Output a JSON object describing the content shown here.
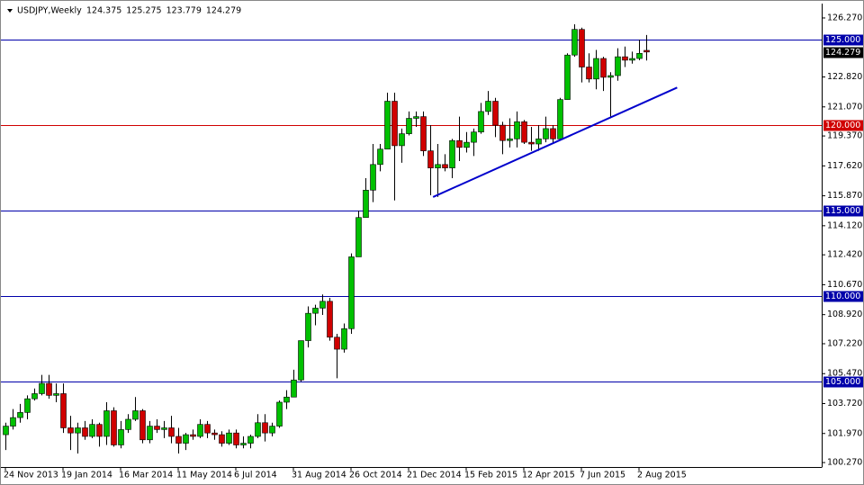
{
  "chart_data": {
    "type": "candlestick",
    "title": "USDJPY,Weekly",
    "header_values": [
      124.375,
      125.275,
      123.779,
      124.279
    ],
    "categories": [
      "24 Nov 2013",
      null,
      null,
      null,
      null,
      null,
      null,
      null,
      "19 Jan 2014",
      null,
      null,
      null,
      null,
      null,
      null,
      null,
      "16 Mar 2014",
      null,
      null,
      null,
      null,
      null,
      null,
      null,
      "11 May 2014",
      null,
      null,
      null,
      null,
      null,
      null,
      null,
      "6 Jul 2014",
      null,
      null,
      null,
      null,
      null,
      null,
      null,
      "31 Aug 2014",
      null,
      null,
      null,
      null,
      null,
      null,
      null,
      "26 Oct 2014",
      null,
      null,
      null,
      null,
      null,
      null,
      null,
      "21 Dec 2014",
      null,
      null,
      null,
      null,
      null,
      null,
      null,
      "15 Feb 2015",
      null,
      null,
      null,
      null,
      null,
      null,
      null,
      "12 Apr 2015",
      null,
      null,
      null,
      null,
      null,
      null,
      null,
      "7 Jun 2015",
      null,
      null,
      null,
      null,
      null,
      null,
      null,
      "2 Aug 2015",
      null
    ],
    "open": [
      101.9,
      102.4,
      102.9,
      103.2,
      104.0,
      104.3,
      104.9,
      104.2,
      104.3,
      102.3,
      102.0,
      102.3,
      101.8,
      102.5,
      101.8,
      103.3,
      101.3,
      102.2,
      102.8,
      103.3,
      101.6,
      102.4,
      102.2,
      102.3,
      101.8,
      101.4,
      101.9,
      101.8,
      102.5,
      102.0,
      101.9,
      101.4,
      102.0,
      101.3,
      101.4,
      101.8,
      102.6,
      102.0,
      102.4,
      103.8,
      104.1,
      105.1,
      107.4,
      109.0,
      109.3,
      109.7,
      107.6,
      106.9,
      108.1,
      112.3,
      114.6,
      116.2,
      117.7,
      118.6,
      121.4,
      118.8,
      119.5,
      120.4,
      120.5,
      118.5,
      117.5,
      117.7,
      117.5,
      119.1,
      118.7,
      119.0,
      119.6,
      120.8,
      121.4,
      120.0,
      119.1,
      119.2,
      120.2,
      119.0,
      118.9,
      119.2,
      119.8,
      119.2,
      121.5,
      124.1,
      125.6,
      123.4,
      122.7,
      123.9,
      122.8,
      122.9,
      124.0,
      123.8,
      123.9,
      124.375
    ],
    "high": [
      102.6,
      103.4,
      103.7,
      104.2,
      104.6,
      105.4,
      105.4,
      104.9,
      104.9,
      103.0,
      102.6,
      102.7,
      102.8,
      102.6,
      103.8,
      103.5,
      102.7,
      103.1,
      104.1,
      103.4,
      102.7,
      102.8,
      102.7,
      103.0,
      102.3,
      102.0,
      102.2,
      102.8,
      102.7,
      102.2,
      102.1,
      102.2,
      102.2,
      101.8,
      101.9,
      103.1,
      103.1,
      102.6,
      103.9,
      104.5,
      105.7,
      107.4,
      109.4,
      109.5,
      110.1,
      109.9,
      107.8,
      108.4,
      112.5,
      115.0,
      116.9,
      118.9,
      118.9,
      121.9,
      121.9,
      119.8,
      120.8,
      120.8,
      120.8,
      120.0,
      118.9,
      118.3,
      119.2,
      120.5,
      119.6,
      119.8,
      121.3,
      122.0,
      121.6,
      120.2,
      120.4,
      120.8,
      120.3,
      119.9,
      120.0,
      120.5,
      120.0,
      121.6,
      124.2,
      125.9,
      125.7,
      124.2,
      124.4,
      124.0,
      123.1,
      124.5,
      124.6,
      124.3,
      125.0,
      125.275
    ],
    "low": [
      101.0,
      102.2,
      102.6,
      102.8,
      103.9,
      104.2,
      104.0,
      103.8,
      102.0,
      101.0,
      100.8,
      101.6,
      101.7,
      101.2,
      101.3,
      101.2,
      101.1,
      102.0,
      102.7,
      101.4,
      101.4,
      102.0,
      101.7,
      101.4,
      100.8,
      101.0,
      101.6,
      101.7,
      101.7,
      101.6,
      101.2,
      101.3,
      101.1,
      101.1,
      101.1,
      101.7,
      101.5,
      101.8,
      102.3,
      103.4,
      104.1,
      105.0,
      107.0,
      108.3,
      108.9,
      107.4,
      105.2,
      106.7,
      107.8,
      112.3,
      114.6,
      115.5,
      117.3,
      118.6,
      115.6,
      117.8,
      119.4,
      119.9,
      118.2,
      115.9,
      115.8,
      117.3,
      116.9,
      117.9,
      118.4,
      118.2,
      119.5,
      120.6,
      119.3,
      118.3,
      118.7,
      118.7,
      118.9,
      118.5,
      118.5,
      119.0,
      118.9,
      119.2,
      121.5,
      124.0,
      122.5,
      122.5,
      122.1,
      122.0,
      120.4,
      122.6,
      123.4,
      123.6,
      123.8,
      123.779
    ],
    "close": [
      102.4,
      102.9,
      103.2,
      104.0,
      104.3,
      104.9,
      104.2,
      104.3,
      102.3,
      102.0,
      102.3,
      101.8,
      102.5,
      101.8,
      103.3,
      101.3,
      102.2,
      102.8,
      103.3,
      101.6,
      102.4,
      102.2,
      102.3,
      101.8,
      101.4,
      101.9,
      101.8,
      102.5,
      102.0,
      101.9,
      101.4,
      102.0,
      101.3,
      101.4,
      101.8,
      102.6,
      102.0,
      102.4,
      103.8,
      104.1,
      105.1,
      107.4,
      109.0,
      109.3,
      109.7,
      107.6,
      106.9,
      108.1,
      112.3,
      114.6,
      116.2,
      117.7,
      118.6,
      121.4,
      118.8,
      119.5,
      120.4,
      120.5,
      118.5,
      117.5,
      117.7,
      117.5,
      119.1,
      118.7,
      119.0,
      119.6,
      120.8,
      121.4,
      120.0,
      119.1,
      119.2,
      120.2,
      119.0,
      118.9,
      119.2,
      119.8,
      119.2,
      121.5,
      124.1,
      125.6,
      123.4,
      122.7,
      123.9,
      122.8,
      122.9,
      124.0,
      123.8,
      123.9,
      124.2,
      124.279
    ],
    "up_color": "#00c000",
    "down_color": "#d00000",
    "ylim": [
      100.01,
      127.11
    ],
    "yticks": [
      {
        "value": 126.27,
        "label": "126.270"
      },
      {
        "value": 122.82,
        "label": "122.820"
      },
      {
        "value": 121.07,
        "label": "121.070"
      },
      {
        "value": 119.37,
        "label": "119.370"
      },
      {
        "value": 117.62,
        "label": "117.620"
      },
      {
        "value": 115.87,
        "label": "115.870"
      },
      {
        "value": 114.12,
        "label": "114.120"
      },
      {
        "value": 112.42,
        "label": "112.420"
      },
      {
        "value": 110.67,
        "label": "110.670"
      },
      {
        "value": 108.92,
        "label": "108.920"
      },
      {
        "value": 107.22,
        "label": "107.220"
      },
      {
        "value": 105.47,
        "label": "105.470"
      },
      {
        "value": 103.72,
        "label": "103.720"
      },
      {
        "value": 101.97,
        "label": "101.970"
      },
      {
        "value": 100.27,
        "label": "100.270"
      }
    ],
    "levels": [
      {
        "value": 125,
        "label": "125.000",
        "color": "#0000aa"
      },
      {
        "value": 120,
        "label": "120.000",
        "color": "#d00000"
      },
      {
        "value": 115,
        "label": "115.000",
        "color": "#0000aa"
      },
      {
        "value": 110,
        "label": "110.000",
        "color": "#0000aa"
      },
      {
        "value": 105,
        "label": "105.000",
        "color": "#0000aa"
      }
    ],
    "last_price": 124.279,
    "trendline": {
      "x": [
        59.4,
        93.3
      ],
      "values": [
        115.8,
        122.2
      ],
      "color": "#0000cc"
    },
    "grid": false
  }
}
